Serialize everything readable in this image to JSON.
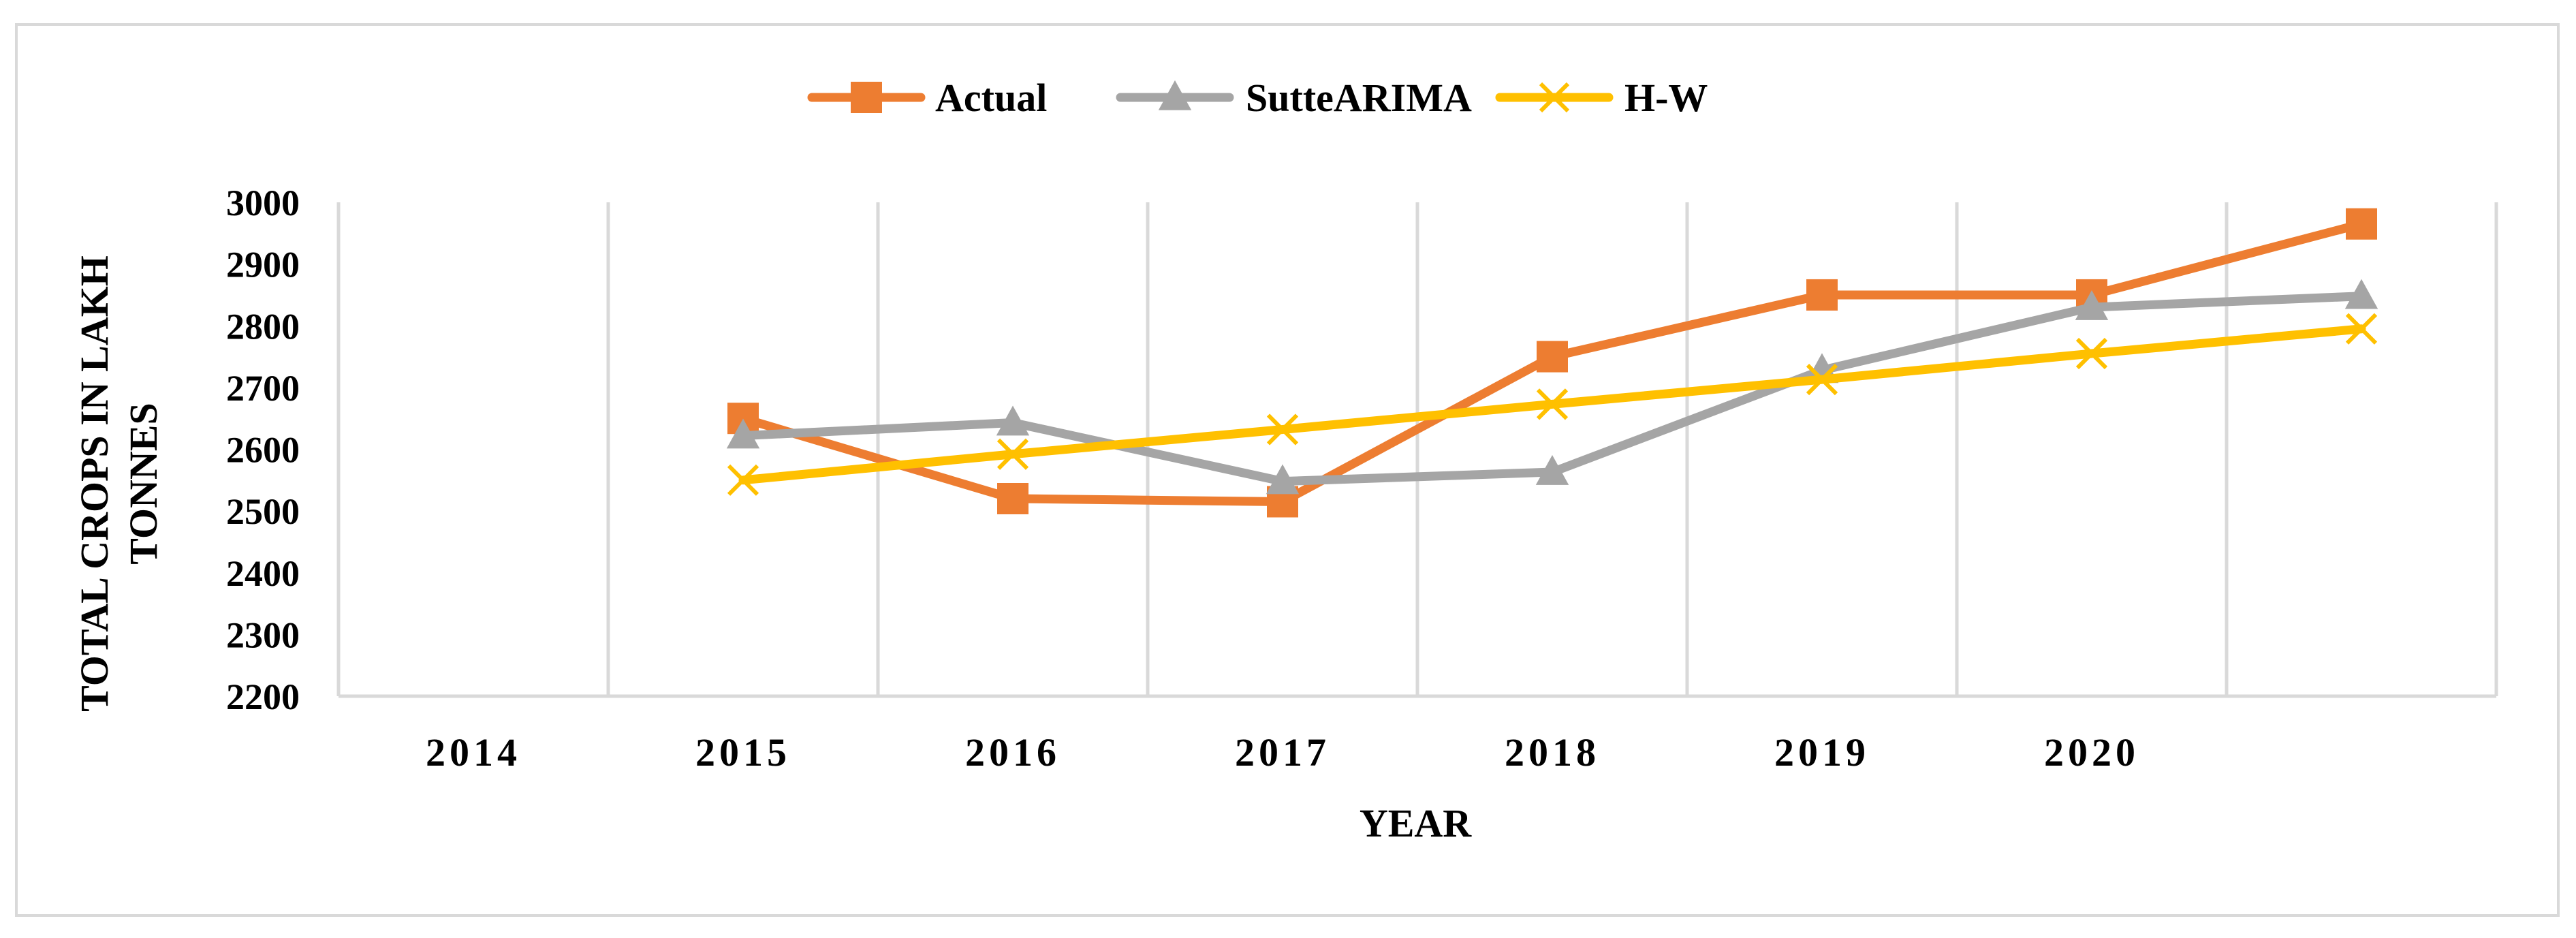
{
  "chart_data": {
    "type": "line",
    "title": "",
    "xlabel": "YEAR",
    "ylabel_lines": [
      "TOTAL CROPS IN LAKH",
      "TONNES"
    ],
    "x_tick_labels": [
      "2014",
      "2015",
      "2016",
      "2017",
      "2018",
      "2019",
      "2020"
    ],
    "y_ticks": [
      2200,
      2300,
      2400,
      2500,
      2600,
      2700,
      2800,
      2900,
      3000
    ],
    "ylim": [
      2200,
      3000
    ],
    "grid": "vertical",
    "legend_position": "top-center",
    "series": [
      {
        "name": "Actual",
        "color": "#ED7D31",
        "marker": "square",
        "points": [
          [
            1,
            2650
          ],
          [
            2,
            2520
          ],
          [
            3,
            2515
          ],
          [
            4,
            2750
          ],
          [
            5,
            2850
          ],
          [
            6,
            2850
          ],
          [
            7,
            2965
          ]
        ]
      },
      {
        "name": "SutteARIMA",
        "color": "#A5A5A5",
        "marker": "triangle",
        "points": [
          [
            1,
            2622
          ],
          [
            2,
            2643
          ],
          [
            3,
            2548
          ],
          [
            4,
            2563
          ],
          [
            5,
            2728
          ],
          [
            6,
            2830
          ],
          [
            7,
            2848
          ]
        ]
      },
      {
        "name": "H-W",
        "color": "#FFC000",
        "marker": "x",
        "points": [
          [
            1,
            2550
          ],
          [
            2,
            2592
          ],
          [
            3,
            2632
          ],
          [
            4,
            2673
          ],
          [
            5,
            2713
          ],
          [
            6,
            2755
          ],
          [
            7,
            2795
          ]
        ]
      }
    ]
  }
}
